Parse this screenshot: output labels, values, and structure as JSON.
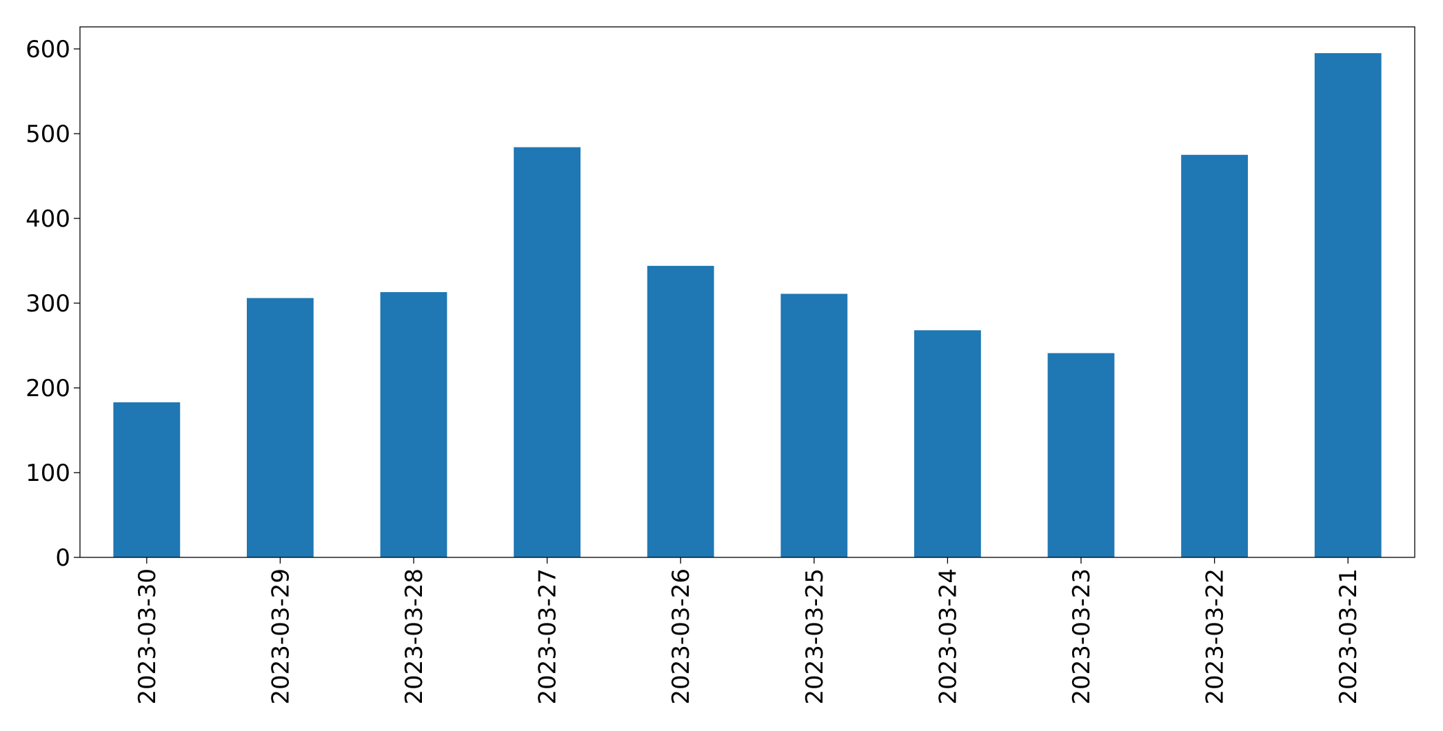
{
  "chart_data": {
    "type": "bar",
    "categories": [
      "2023-03-30",
      "2023-03-29",
      "2023-03-28",
      "2023-03-27",
      "2023-03-26",
      "2023-03-25",
      "2023-03-24",
      "2023-03-23",
      "2023-03-22",
      "2023-03-21"
    ],
    "values": [
      183,
      306,
      313,
      484,
      344,
      311,
      268,
      241,
      475,
      595
    ],
    "color": "#1f77b4",
    "ylim": [
      0,
      626
    ],
    "yticks": [
      0,
      100,
      200,
      300,
      400,
      500,
      600
    ],
    "grid": false
  }
}
